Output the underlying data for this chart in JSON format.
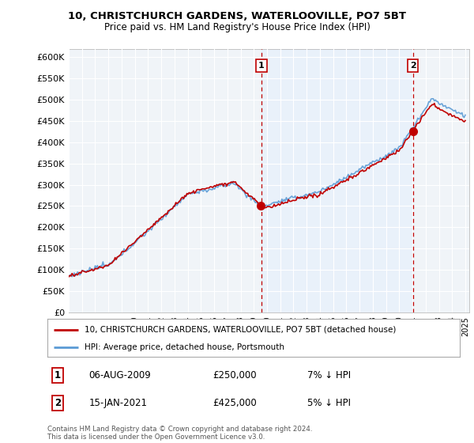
{
  "title_line1": "10, CHRISTCHURCH GARDENS, WATERLOOVILLE, PO7 5BT",
  "title_line2": "Price paid vs. HM Land Registry's House Price Index (HPI)",
  "ylabel_ticks": [
    "£0",
    "£50K",
    "£100K",
    "£150K",
    "£200K",
    "£250K",
    "£300K",
    "£350K",
    "£400K",
    "£450K",
    "£500K",
    "£550K",
    "£600K"
  ],
  "ytick_values": [
    0,
    50000,
    100000,
    150000,
    200000,
    250000,
    300000,
    350000,
    400000,
    450000,
    500000,
    550000,
    600000
  ],
  "hpi_color": "#5b9bd5",
  "price_color": "#c00000",
  "vline_color": "#c00000",
  "shade_color": "#ddeeff",
  "marker1_year": 2009.58,
  "marker1_price": 250000,
  "marker1_label": "1",
  "marker2_year": 2021.04,
  "marker2_price": 425000,
  "marker2_label": "2",
  "legend_label1": "10, CHRISTCHURCH GARDENS, WATERLOOVILLE, PO7 5BT (detached house)",
  "legend_label2": "HPI: Average price, detached house, Portsmouth",
  "annotation1_num": "1",
  "annotation1_date": "06-AUG-2009",
  "annotation1_price": "£250,000",
  "annotation1_hpi": "7% ↓ HPI",
  "annotation2_num": "2",
  "annotation2_date": "15-JAN-2021",
  "annotation2_price": "£425,000",
  "annotation2_hpi": "5% ↓ HPI",
  "footer": "Contains HM Land Registry data © Crown copyright and database right 2024.\nThis data is licensed under the Open Government Licence v3.0.",
  "bg_color": "#ffffff",
  "plot_bg_color": "#f0f4f8"
}
